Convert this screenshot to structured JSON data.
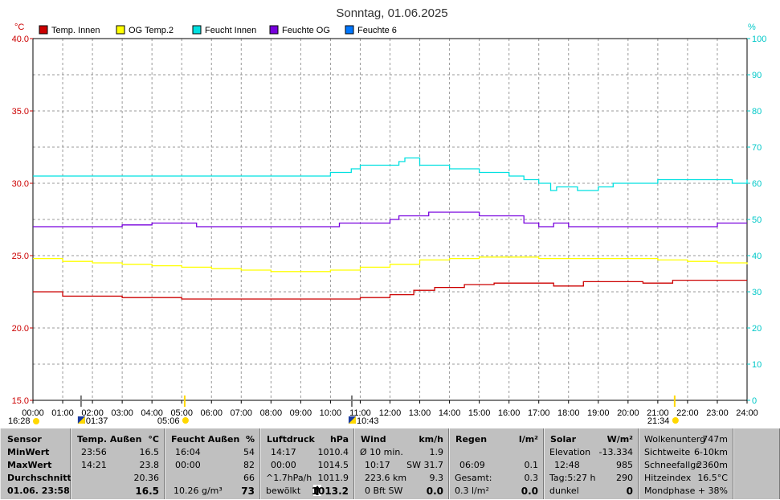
{
  "title": "Sonntag, 01.06.2025",
  "colors": {
    "temp_innen": "#cc0000",
    "og_temp2": "#ffff00",
    "feucht_innen": "#00e0e0",
    "feuchte_og": "#7700dd",
    "feuchte6": "#0077ff",
    "left_axis": "#cc0000",
    "right_axis": "#00c8c8",
    "panel_bg": "#c0c0c0"
  },
  "chart_data": {
    "type": "line",
    "title": "Sonntag, 01.06.2025",
    "y_left": {
      "unit": "°C",
      "range": [
        15.0,
        40.0
      ],
      "ticks": [
        "15.0",
        "20.0",
        "25.0",
        "30.0",
        "35.0",
        "40.0"
      ]
    },
    "y_right": {
      "unit": "%",
      "range": [
        0,
        100
      ],
      "ticks": [
        "0",
        "10",
        "20",
        "30",
        "40",
        "50",
        "60",
        "70",
        "80",
        "90",
        "100"
      ]
    },
    "x_ticks": [
      "00:00",
      "01:00",
      "02:00",
      "03:00",
      "04:00",
      "05:00",
      "06:00",
      "07:00",
      "08:00",
      "09:00",
      "10:00",
      "11:00",
      "12:00",
      "13:00",
      "14:00",
      "15:00",
      "16:00",
      "17:00",
      "18:00",
      "19:00",
      "20:00",
      "21:00",
      "22:00",
      "23:00",
      "24:00"
    ],
    "grid": true,
    "legend_position": "top-left",
    "series": [
      {
        "name": "Temp. Innen",
        "axis": "left",
        "color": "#cc0000",
        "points": [
          [
            0,
            22.5
          ],
          [
            0.5,
            22.5
          ],
          [
            1,
            22.2
          ],
          [
            2,
            22.2
          ],
          [
            3,
            22.1
          ],
          [
            4,
            22.1
          ],
          [
            5,
            22.0
          ],
          [
            7,
            22.0
          ],
          [
            9,
            22.0
          ],
          [
            10,
            22.0
          ],
          [
            11,
            22.1
          ],
          [
            12,
            22.3
          ],
          [
            12.8,
            22.6
          ],
          [
            13.5,
            22.8
          ],
          [
            14.5,
            23.0
          ],
          [
            15.5,
            23.1
          ],
          [
            16.5,
            23.1
          ],
          [
            17.5,
            22.9
          ],
          [
            18.5,
            23.2
          ],
          [
            19.5,
            23.2
          ],
          [
            20.5,
            23.1
          ],
          [
            21.5,
            23.3
          ],
          [
            22.5,
            23.3
          ],
          [
            23.5,
            23.3
          ],
          [
            24,
            23.3
          ]
        ]
      },
      {
        "name": "OG Temp.2",
        "axis": "left",
        "color": "#ffff00",
        "points": [
          [
            0,
            24.8
          ],
          [
            1,
            24.6
          ],
          [
            2,
            24.5
          ],
          [
            3,
            24.4
          ],
          [
            4,
            24.3
          ],
          [
            5,
            24.2
          ],
          [
            6,
            24.1
          ],
          [
            7,
            24.0
          ],
          [
            8,
            23.9
          ],
          [
            9,
            23.9
          ],
          [
            10,
            24.0
          ],
          [
            11,
            24.2
          ],
          [
            12,
            24.4
          ],
          [
            13,
            24.7
          ],
          [
            14,
            24.8
          ],
          [
            15,
            24.9
          ],
          [
            16,
            24.9
          ],
          [
            17,
            24.8
          ],
          [
            18,
            24.8
          ],
          [
            19,
            24.8
          ],
          [
            20,
            24.8
          ],
          [
            21,
            24.7
          ],
          [
            22,
            24.6
          ],
          [
            23,
            24.5
          ],
          [
            24,
            24.4
          ]
        ]
      },
      {
        "name": "Feucht Innen",
        "axis": "right",
        "color": "#00e0e0",
        "points": [
          [
            0,
            62
          ],
          [
            3,
            62
          ],
          [
            6,
            62
          ],
          [
            9,
            62
          ],
          [
            9.5,
            62
          ],
          [
            10,
            63
          ],
          [
            10.7,
            64
          ],
          [
            11,
            65
          ],
          [
            12,
            65
          ],
          [
            12.3,
            66
          ],
          [
            12.5,
            67
          ],
          [
            13,
            65
          ],
          [
            14,
            64
          ],
          [
            15,
            63
          ],
          [
            16,
            62
          ],
          [
            16.5,
            61
          ],
          [
            17,
            60
          ],
          [
            17.4,
            58
          ],
          [
            17.6,
            59
          ],
          [
            18,
            59
          ],
          [
            18.3,
            58
          ],
          [
            19,
            59
          ],
          [
            19.5,
            60
          ],
          [
            20,
            60
          ],
          [
            21,
            61
          ],
          [
            22,
            61
          ],
          [
            23,
            61
          ],
          [
            23.5,
            60
          ],
          [
            24,
            61
          ]
        ]
      },
      {
        "name": "Feuchte OG",
        "axis": "right",
        "color": "#7700dd",
        "points": [
          [
            0,
            48
          ],
          [
            2,
            48
          ],
          [
            3,
            48.5
          ],
          [
            4,
            49
          ],
          [
            5.5,
            48
          ],
          [
            8,
            48
          ],
          [
            10,
            48
          ],
          [
            10.3,
            49
          ],
          [
            12,
            50
          ],
          [
            12.3,
            51
          ],
          [
            13,
            51
          ],
          [
            13.3,
            52
          ],
          [
            15,
            51
          ],
          [
            16,
            51
          ],
          [
            16.5,
            49
          ],
          [
            17,
            48
          ],
          [
            17.5,
            49
          ],
          [
            18,
            48
          ],
          [
            20,
            48
          ],
          [
            22,
            48
          ],
          [
            22.5,
            48
          ],
          [
            23,
            49
          ],
          [
            24,
            49
          ]
        ]
      },
      {
        "name": "Feuchte 6",
        "axis": "right",
        "color": "#0077ff",
        "points": []
      }
    ]
  },
  "events": {
    "moonset": "16:28",
    "sunrise_mark": "01:37",
    "sunrise": "05:06",
    "sun_mark": "10:43",
    "sunset": "21:34"
  },
  "panel": {
    "sensor": {
      "h1": "Sensor",
      "min": "MinWert",
      "max": "MaxWert",
      "avg": "Durchschnitt",
      "date": "01.06. 23:58"
    },
    "temp": {
      "h1": "Temp. Außen",
      "h2": "°C",
      "min_t": "23:56",
      "min_v": "16.5",
      "max_t": "14:21",
      "max_v": "23.8",
      "avg_v": "20.36",
      "cur": "16.5"
    },
    "feucht": {
      "h1": "Feucht Außen",
      "h2": "%",
      "min_t": "16:04",
      "min_v": "54",
      "max_t": "00:00",
      "max_v": "82",
      "avg_v": "66",
      "extra": "10.26 g/m³",
      "cur": "73"
    },
    "luft": {
      "h1": "Luftdruck",
      "h2": "hPa",
      "min_t": "14:17",
      "min_v": "1010.4",
      "max_t": "00:00",
      "max_v": "1014.5",
      "trend_l": "^1.7hPa/h",
      "trend_v": "1011.9",
      "state": "bewölkt",
      "cur": "1013.2"
    },
    "wind": {
      "h1": "Wind",
      "h2": "km/h",
      "r1_l": "Ø 10 min.",
      "r1_v": "1.9",
      "r2_l": "10:17",
      "r2_v": "SW 31.7",
      "r3_l": "223.6 km",
      "r3_v": "9.3",
      "r4_l": "0 Bft SW",
      "r4_v": "0.0"
    },
    "regen": {
      "h1": "Regen",
      "h2": "l/m²",
      "r2_l": "06:09",
      "r2_v": "0.1",
      "r3_l": "Gesamt:",
      "r3_v": "0.3",
      "r4_l": "0.3 l/m²",
      "r4_v": "0.0"
    },
    "solar": {
      "h1": "Solar",
      "h2": "W/m²",
      "r1_l": "Elevation",
      "r1_v": "-13.334",
      "r2_l": "12:48",
      "r2_v": "985",
      "r3_l": "Tag:5:27 h",
      "r3_v": "290",
      "r4_l": "dunkel",
      "r4_v": "0"
    },
    "misc": {
      "r0_l": "Wolkenunterg",
      "r0_v": "747m",
      "r1_l": "Sichtweite",
      "r1_v": "6-10km",
      "r2_l": "Schneefallgr",
      "r2_v": "2360m",
      "r3_l": "Hitzeindex",
      "r3_v": "16.5°C",
      "r4_l": "Mondphase",
      "r4_v": "+ 38%"
    }
  }
}
